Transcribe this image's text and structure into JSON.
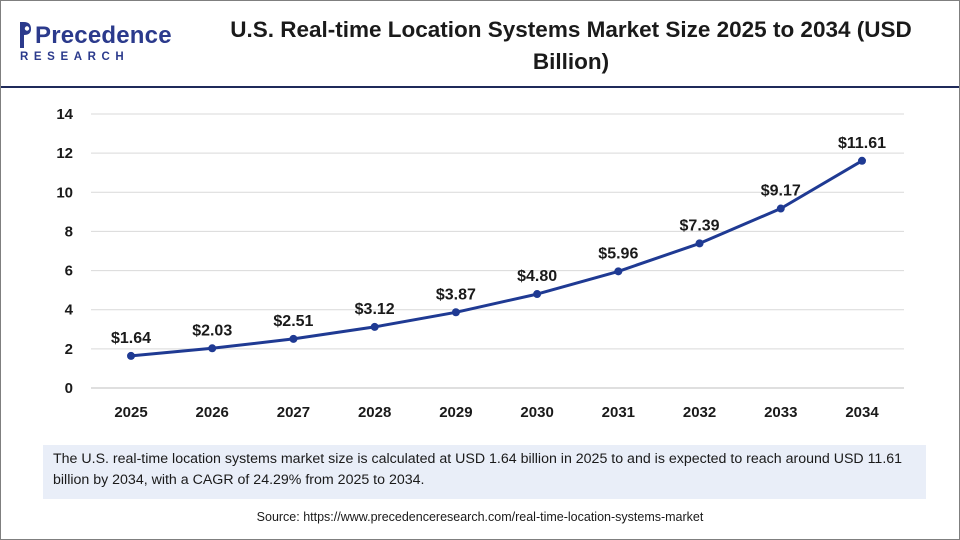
{
  "brand": {
    "name_line1": "Precedence",
    "name_line2": "RESEARCH",
    "color": "#2b3a8c"
  },
  "title": "U.S. Real-time Location Systems Market Size 2025 to 2034 (USD Billion)",
  "chart_data": {
    "type": "line",
    "title": "U.S. Real-time Location Systems Market Size 2025 to 2034 (USD Billion)",
    "xlabel": "",
    "ylabel": "",
    "categories": [
      "2025",
      "2026",
      "2027",
      "2028",
      "2029",
      "2030",
      "2031",
      "2032",
      "2033",
      "2034"
    ],
    "series": [
      {
        "values": [
          1.64,
          2.03,
          2.51,
          3.12,
          3.87,
          4.8,
          5.96,
          7.39,
          9.17,
          11.61
        ],
        "labels": [
          "$1.64",
          "$2.03",
          "$2.51",
          "$3.12",
          "$3.87",
          "$4.80",
          "$5.96",
          "$7.39",
          "$9.17",
          "$11.61"
        ],
        "color": "#1f3a93"
      }
    ],
    "ylim": [
      0,
      14
    ],
    "yticks": [
      0,
      2,
      4,
      6,
      8,
      10,
      12,
      14
    ],
    "grid": true,
    "legend": "none"
  },
  "note": "The U.S. real-time location systems market size is calculated at USD 1.64 billion in 2025 to and is expected to reach around USD 11.61 billion by 2034, with a CAGR of 24.29% from 2025 to 2034.",
  "source": "Source: https://www.precedenceresearch.com/real-time-location-systems-market"
}
